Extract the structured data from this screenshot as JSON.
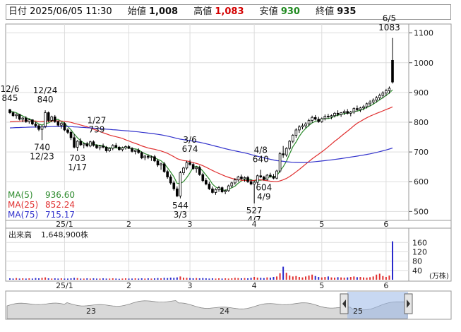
{
  "header": {
    "date_label": "日付",
    "datetime": "2025/06/05 11:30",
    "open_label": "始値",
    "open": "1,008",
    "high_label": "高値",
    "high": "1,083",
    "low_label": "安値",
    "low": "930",
    "close_label": "終値",
    "close": "935"
  },
  "colors": {
    "up": "#ffffff",
    "down": "#000000",
    "ma5": "#2e8b2e",
    "ma25": "#e03030",
    "ma75": "#3333cc",
    "vol_up": "#e03030",
    "vol_down": "#2a2acc"
  },
  "chart_data": {
    "type": "candlestick",
    "price_axis": {
      "ticks": [
        "1100",
        "1000",
        "900",
        "800",
        "700",
        "600",
        "500"
      ],
      "range": [
        470,
        1130
      ]
    },
    "x_ticks": [
      "25/1",
      "2",
      "3",
      "4",
      "5",
      "6"
    ],
    "ma_legend": [
      {
        "label": "MA(5)",
        "value": "936.60"
      },
      {
        "label": "MA(25)",
        "value": "852.24"
      },
      {
        "label": "MA(75)",
        "value": "715.17"
      }
    ],
    "annotations": [
      {
        "text": "12/6",
        "price": 845,
        "day": 0,
        "pos": "above"
      },
      {
        "text": "845",
        "price": 845,
        "day": 0,
        "pos": "above2"
      },
      {
        "text": "12/24",
        "price": 840,
        "day": 11,
        "pos": "above"
      },
      {
        "text": "840",
        "price": 840,
        "day": 11,
        "pos": "above2"
      },
      {
        "text": "740",
        "price": 740,
        "day": 10,
        "pos": "below"
      },
      {
        "text": "12/23",
        "price": 740,
        "day": 10,
        "pos": "below2"
      },
      {
        "text": "1/27",
        "price": 739,
        "day": 27,
        "pos": "above"
      },
      {
        "text": "739",
        "price": 739,
        "day": 27,
        "pos": "above2"
      },
      {
        "text": "703",
        "price": 703,
        "day": 21,
        "pos": "below"
      },
      {
        "text": "1/17",
        "price": 703,
        "day": 21,
        "pos": "below2"
      },
      {
        "text": "3/6",
        "price": 674,
        "day": 56,
        "pos": "above"
      },
      {
        "text": "674",
        "price": 674,
        "day": 56,
        "pos": "above2"
      },
      {
        "text": "544",
        "price": 544,
        "day": 53,
        "pos": "below"
      },
      {
        "text": "3/3",
        "price": 544,
        "day": 53,
        "pos": "below2"
      },
      {
        "text": "4/8",
        "price": 640,
        "day": 78,
        "pos": "above"
      },
      {
        "text": "640",
        "price": 640,
        "day": 78,
        "pos": "above2"
      },
      {
        "text": "604",
        "price": 604,
        "day": 79,
        "pos": "below"
      },
      {
        "text": "4/9",
        "price": 604,
        "day": 79,
        "pos": "below2"
      },
      {
        "text": "527",
        "price": 527,
        "day": 76,
        "pos": "below"
      },
      {
        "text": "4/7",
        "price": 527,
        "day": 76,
        "pos": "below2"
      },
      {
        "text": "6/5",
        "price": 1083,
        "day": 118,
        "pos": "above"
      },
      {
        "text": "1083",
        "price": 1083,
        "day": 118,
        "pos": "above2"
      }
    ],
    "candles": [
      [
        842,
        845,
        828,
        832
      ],
      [
        832,
        836,
        818,
        822
      ],
      [
        822,
        830,
        812,
        826
      ],
      [
        826,
        828,
        806,
        810
      ],
      [
        810,
        818,
        800,
        814
      ],
      [
        814,
        820,
        798,
        802
      ],
      [
        802,
        812,
        795,
        808
      ],
      [
        808,
        810,
        790,
        794
      ],
      [
        794,
        800,
        782,
        788
      ],
      [
        788,
        794,
        770,
        776
      ],
      [
        776,
        790,
        740,
        786
      ],
      [
        786,
        840,
        780,
        832
      ],
      [
        832,
        836,
        800,
        806
      ],
      [
        806,
        822,
        800,
        818
      ],
      [
        818,
        824,
        798,
        802
      ],
      [
        802,
        806,
        785,
        790
      ],
      [
        790,
        800,
        778,
        796
      ],
      [
        796,
        800,
        770,
        774
      ],
      [
        774,
        780,
        760,
        766
      ],
      [
        766,
        772,
        740,
        748
      ],
      [
        748,
        760,
        712,
        716
      ],
      [
        716,
        740,
        703,
        736
      ],
      [
        736,
        746,
        720,
        724
      ],
      [
        724,
        730,
        712,
        728
      ],
      [
        728,
        734,
        716,
        720
      ],
      [
        720,
        738,
        716,
        734
      ],
      [
        734,
        739,
        718,
        722
      ],
      [
        722,
        726,
        710,
        714
      ],
      [
        714,
        724,
        706,
        720
      ],
      [
        720,
        728,
        712,
        716
      ],
      [
        716,
        720,
        698,
        704
      ],
      [
        704,
        716,
        700,
        712
      ],
      [
        712,
        726,
        706,
        722
      ],
      [
        722,
        730,
        712,
        716
      ],
      [
        716,
        720,
        704,
        708
      ],
      [
        708,
        718,
        702,
        714
      ],
      [
        714,
        722,
        708,
        718
      ],
      [
        718,
        724,
        710,
        712
      ],
      [
        712,
        716,
        698,
        702
      ],
      [
        702,
        708,
        692,
        706
      ],
      [
        706,
        712,
        694,
        698
      ],
      [
        698,
        702,
        676,
        680
      ],
      [
        680,
        690,
        672,
        686
      ],
      [
        686,
        692,
        676,
        682
      ],
      [
        682,
        688,
        670,
        684
      ],
      [
        684,
        690,
        666,
        670
      ],
      [
        670,
        676,
        650,
        656
      ],
      [
        656,
        664,
        640,
        660
      ],
      [
        660,
        666,
        630,
        634
      ],
      [
        634,
        640,
        610,
        616
      ],
      [
        616,
        624,
        590,
        596
      ],
      [
        596,
        604,
        570,
        576
      ],
      [
        576,
        584,
        548,
        552
      ],
      [
        552,
        636,
        544,
        630
      ],
      [
        630,
        650,
        622,
        646
      ],
      [
        646,
        670,
        640,
        664
      ],
      [
        664,
        674,
        654,
        658
      ],
      [
        658,
        664,
        640,
        644
      ],
      [
        644,
        652,
        630,
        648
      ],
      [
        648,
        654,
        620,
        624
      ],
      [
        624,
        630,
        598,
        604
      ],
      [
        604,
        612,
        588,
        592
      ],
      [
        592,
        600,
        572,
        576
      ],
      [
        576,
        584,
        560,
        564
      ],
      [
        564,
        578,
        556,
        574
      ],
      [
        574,
        586,
        566,
        580
      ],
      [
        580,
        584,
        562,
        566
      ],
      [
        566,
        574,
        558,
        570
      ],
      [
        570,
        590,
        566,
        586
      ],
      [
        586,
        600,
        580,
        596
      ],
      [
        596,
        612,
        590,
        606
      ],
      [
        606,
        620,
        600,
        616
      ],
      [
        616,
        624,
        606,
        610
      ],
      [
        610,
        618,
        600,
        614
      ],
      [
        614,
        620,
        596,
        600
      ],
      [
        600,
        608,
        588,
        592
      ],
      [
        592,
        604,
        527,
        598
      ],
      [
        598,
        624,
        590,
        620
      ],
      [
        620,
        640,
        612,
        616
      ],
      [
        616,
        620,
        604,
        608
      ],
      [
        608,
        626,
        604,
        622
      ],
      [
        622,
        630,
        614,
        618
      ],
      [
        618,
        626,
        608,
        612
      ],
      [
        612,
        640,
        608,
        636
      ],
      [
        636,
        700,
        630,
        694
      ],
      [
        694,
        720,
        680,
        690
      ],
      [
        690,
        716,
        684,
        712
      ],
      [
        712,
        740,
        706,
        736
      ],
      [
        736,
        760,
        730,
        756
      ],
      [
        756,
        780,
        748,
        774
      ],
      [
        774,
        790,
        764,
        784
      ],
      [
        784,
        796,
        776,
        788
      ],
      [
        788,
        800,
        780,
        794
      ],
      [
        794,
        812,
        786,
        806
      ],
      [
        806,
        822,
        798,
        816
      ],
      [
        816,
        824,
        806,
        810
      ],
      [
        810,
        818,
        798,
        802
      ],
      [
        802,
        816,
        798,
        812
      ],
      [
        812,
        826,
        806,
        820
      ],
      [
        820,
        828,
        812,
        818
      ],
      [
        818,
        826,
        810,
        822
      ],
      [
        822,
        834,
        816,
        830
      ],
      [
        830,
        840,
        820,
        826
      ],
      [
        826,
        834,
        818,
        832
      ],
      [
        832,
        842,
        824,
        836
      ],
      [
        836,
        844,
        826,
        830
      ],
      [
        830,
        838,
        820,
        834
      ],
      [
        834,
        850,
        828,
        846
      ],
      [
        846,
        856,
        836,
        842
      ],
      [
        842,
        852,
        834,
        848
      ],
      [
        848,
        858,
        840,
        852
      ],
      [
        852,
        866,
        846,
        862
      ],
      [
        862,
        874,
        854,
        868
      ],
      [
        868,
        880,
        860,
        874
      ],
      [
        874,
        888,
        866,
        882
      ],
      [
        882,
        896,
        874,
        890
      ],
      [
        890,
        904,
        880,
        898
      ],
      [
        898,
        912,
        888,
        906
      ],
      [
        906,
        920,
        896,
        914
      ],
      [
        1008,
        1083,
        930,
        935
      ]
    ],
    "ma5": [],
    "ma25": [],
    "ma75": [],
    "volume_axis": {
      "ticks": [
        "160",
        "120",
        "80",
        "40"
      ],
      "unit": "(万株)",
      "max": 170
    },
    "volume": {
      "label": "出来高",
      "value": "1,648,900株",
      "values": [
        6,
        5,
        7,
        5,
        6,
        5,
        6,
        5,
        7,
        6,
        8,
        10,
        6,
        5,
        6,
        5,
        6,
        5,
        5,
        6,
        8,
        7,
        5,
        5,
        6,
        5,
        6,
        5,
        5,
        6,
        5,
        5,
        6,
        5,
        4,
        5,
        6,
        5,
        5,
        6,
        5,
        6,
        5,
        6,
        5,
        6,
        7,
        6,
        8,
        7,
        9,
        8,
        10,
        14,
        9,
        8,
        7,
        6,
        7,
        6,
        7,
        6,
        5,
        6,
        5,
        6,
        5,
        6,
        5,
        6,
        8,
        7,
        6,
        7,
        6,
        8,
        12,
        9,
        8,
        7,
        10,
        9,
        12,
        14,
        28,
        56,
        30,
        18,
        14,
        16,
        12,
        10,
        14,
        18,
        22,
        16,
        12,
        10,
        12,
        14,
        10,
        9,
        11,
        10,
        9,
        10,
        12,
        14,
        11,
        12,
        10,
        9,
        11,
        14,
        22,
        26,
        16,
        12,
        18,
        165
      ]
    },
    "navigator": {
      "labels": [
        "23",
        "24",
        "25"
      ]
    }
  }
}
